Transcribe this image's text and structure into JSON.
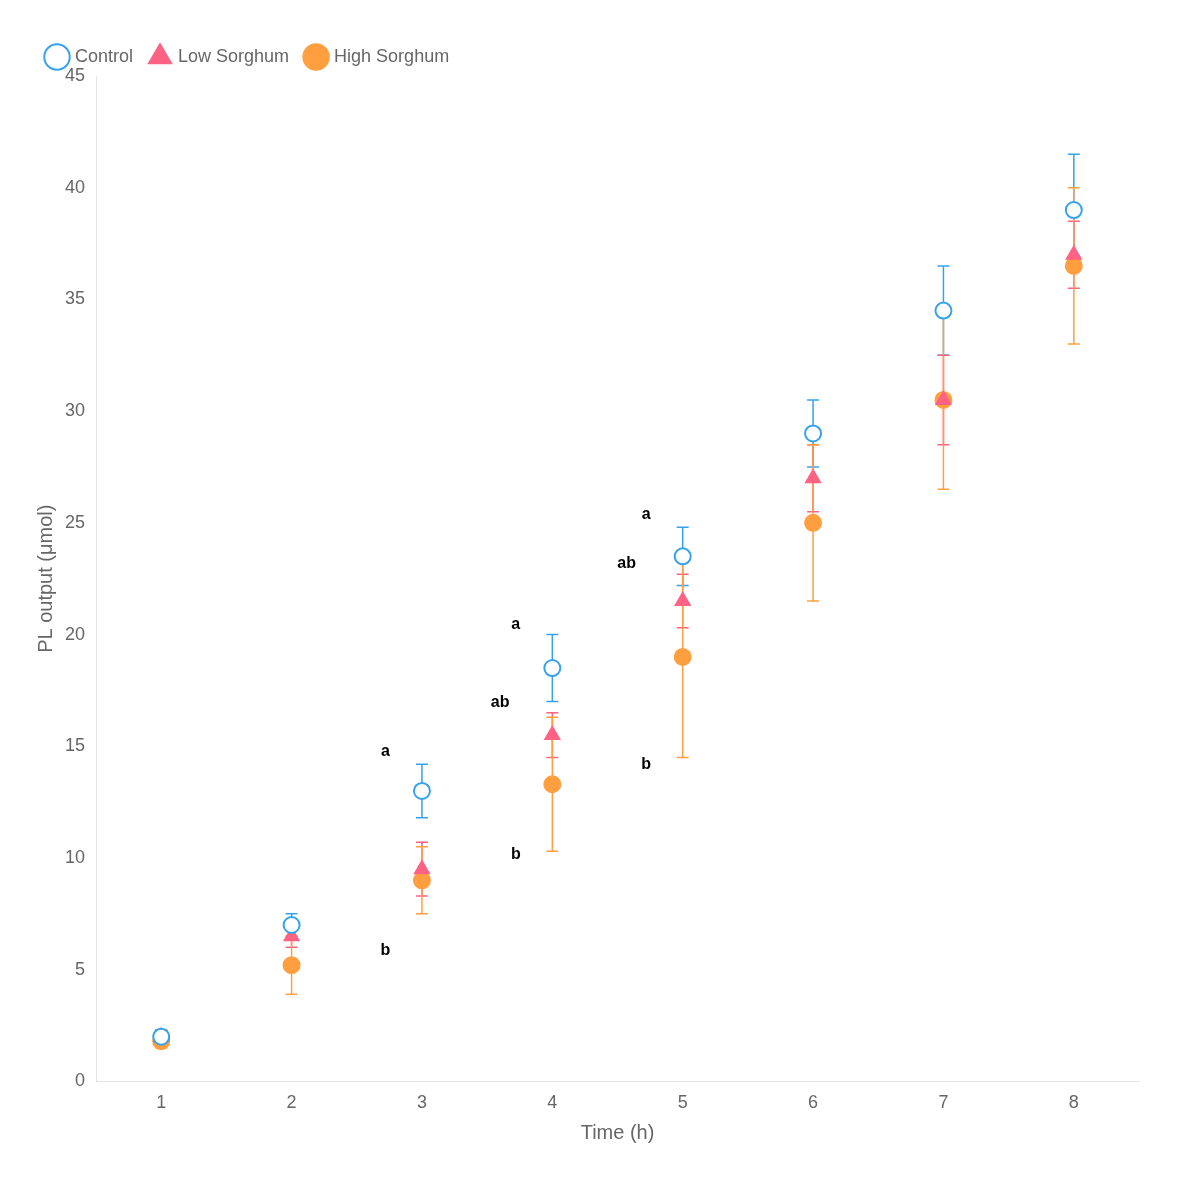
{
  "chart_data": {
    "type": "scatter",
    "xlabel": "Time (h)",
    "ylabel": "PL output (μmol)",
    "x": [
      1,
      2,
      3,
      4,
      5,
      6,
      7,
      8
    ],
    "series": [
      {
        "name": "Control",
        "marker": "open_circle",
        "values": [
          2.0,
          7.0,
          13.0,
          18.5,
          23.5,
          29.0,
          34.5,
          39.0
        ],
        "errors": [
          0.3,
          0.5,
          1.2,
          1.5,
          1.3,
          1.5,
          2.0,
          2.5
        ]
      },
      {
        "name": "Low Sorghum",
        "marker": "triangle",
        "values": [
          2.0,
          6.5,
          9.5,
          15.5,
          21.5,
          27.0,
          30.5,
          37.0
        ],
        "errors": [
          0.3,
          0.5,
          1.2,
          1.0,
          1.2,
          1.5,
          2.0,
          1.5
        ]
      },
      {
        "name": "High Sorghum",
        "marker": "circle",
        "values": [
          1.8,
          5.2,
          9.0,
          13.3,
          19.0,
          25.0,
          30.5,
          36.5
        ],
        "errors": [
          0.3,
          1.3,
          1.5,
          3.0,
          4.5,
          3.5,
          4.0,
          3.5
        ]
      }
    ],
    "xlim": [
      0.5,
      8.5
    ],
    "ylim": [
      0,
      45
    ],
    "xticks": [
      1,
      2,
      3,
      4,
      5,
      6,
      7,
      8
    ],
    "yticks": [
      0,
      5,
      10,
      15,
      20,
      25,
      30,
      35,
      40,
      45
    ],
    "grid": false,
    "legend": "upper left",
    "annotations": [
      {
        "text": "a",
        "x": 2.72,
        "y": 14.4
      },
      {
        "text": "b",
        "x": 2.72,
        "y": 5.5
      },
      {
        "text": "a",
        "x": 3.72,
        "y": 20.1
      },
      {
        "text": "ab",
        "x": 3.6,
        "y": 16.6
      },
      {
        "text": "b",
        "x": 3.72,
        "y": 9.8
      },
      {
        "text": "a",
        "x": 4.72,
        "y": 25.0
      },
      {
        "text": "ab",
        "x": 4.57,
        "y": 22.8
      },
      {
        "text": "b",
        "x": 4.72,
        "y": 13.8
      }
    ]
  }
}
